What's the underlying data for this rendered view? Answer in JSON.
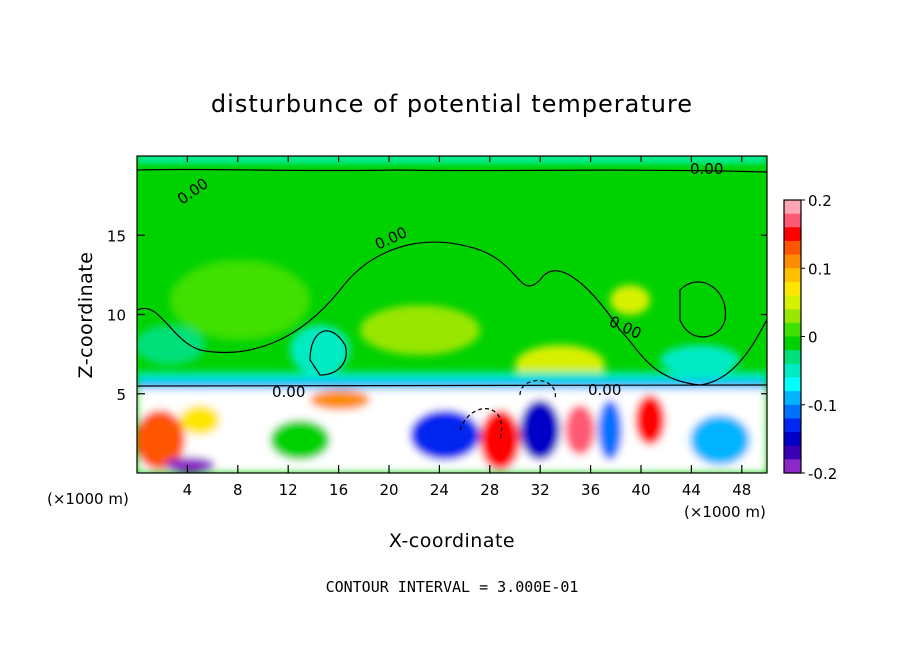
{
  "chart_data": {
    "type": "heatmap",
    "title": "disturbunce of potential temperature",
    "xlabel": "X-coordinate",
    "ylabel": "Z-coordinate",
    "x_unit": "(×1000 m)",
    "y_unit": "(×1000 m)",
    "xlim": [
      0,
      50
    ],
    "ylim": [
      0,
      20
    ],
    "x_ticks": [
      4,
      8,
      12,
      16,
      20,
      24,
      28,
      32,
      36,
      40,
      44,
      48
    ],
    "y_ticks": [
      5,
      10,
      15
    ],
    "colorbar": {
      "range": [
        -0.2,
        0.2
      ],
      "tick_labels": [
        "0.2",
        "0.1",
        "0",
        "-0.1",
        "-0.2"
      ],
      "tick_values": [
        0.2,
        0.1,
        0,
        -0.1,
        -0.2
      ],
      "colors": [
        "#ffa6b4",
        "#ff5a73",
        "#ff0000",
        "#ff5500",
        "#ff8c00",
        "#ffc000",
        "#ffe600",
        "#d7f000",
        "#99e600",
        "#40e000",
        "#00d200",
        "#00e07a",
        "#00ebc4",
        "#00ffff",
        "#00b4ff",
        "#0070ff",
        "#0028f0",
        "#0000c8",
        "#3c00b4",
        "#8c28c8"
      ]
    },
    "contour_labels": [
      "0.00",
      "0.00",
      "0.00",
      "0.00",
      "0.00",
      "0.00"
    ],
    "footer": "CONTOUR INTERVAL = 3.000E-01"
  }
}
